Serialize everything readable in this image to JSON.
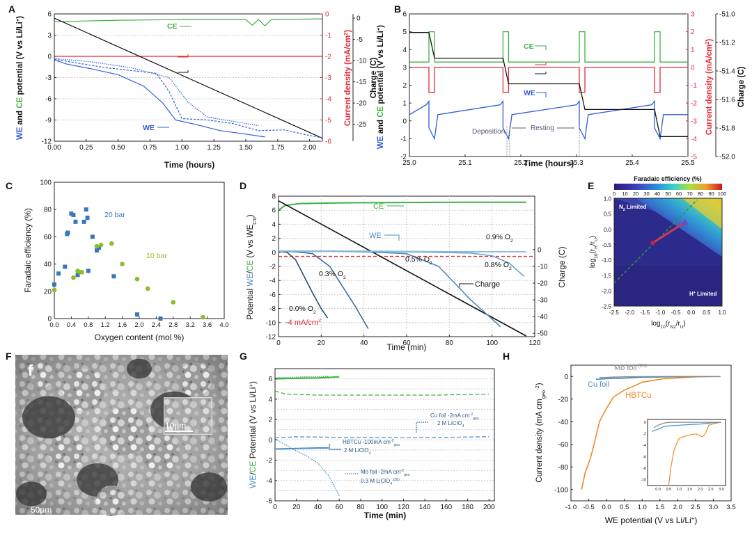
{
  "colors": {
    "we": "#2f5bd8",
    "ce": "#3cb043",
    "cur": "#e8283a",
    "charge": "#111111",
    "blue": "#3a77b8",
    "green": "#8cbc2a",
    "teal": "#4a8fc4",
    "orange": "#f08a24",
    "grey": "#888888",
    "red2": "#d6282d"
  },
  "chart_data": [
    {
      "id": "A",
      "type": "line",
      "panel_label": "A",
      "xlabel": "Time (hours)",
      "xlim": [
        0,
        2.1
      ],
      "xticks": [
        "0.00",
        "0.25",
        "0.50",
        "0.75",
        "1.00",
        "1.25",
        "1.50",
        "1.75",
        "2.00"
      ],
      "ylabel_left": {
        "we": "WE",
        "and": " and ",
        "ce": "CE",
        "rest": " potential (V vs Li/Li",
        "sup": "+",
        "close": ")"
      },
      "ylim_left": [
        -12,
        6
      ],
      "yticks_left": [
        "6",
        "3",
        "0",
        "-3",
        "-6",
        "-9",
        "-12"
      ],
      "ylabel_right1": {
        "text": "Current density (mA/cm",
        "sup": "2",
        "close": ")"
      },
      "ylim_right1": [
        -6,
        0
      ],
      "yticks_right1": [
        "0",
        "-1",
        "-2",
        "-3",
        "-4",
        "-5",
        "-6"
      ],
      "ylabel_right2": "Charge (C)",
      "ylim_right2": [
        -29,
        1
      ],
      "yticks_right2": [
        "0",
        "-5",
        "-10",
        "-15",
        "-20",
        "-25"
      ],
      "annotations": {
        "ce": "CE",
        "we": "WE"
      },
      "series": [
        {
          "name": "CE",
          "axis": "left",
          "x": [
            0,
            0.5,
            1.0,
            1.5,
            1.55,
            1.6,
            1.65,
            1.7,
            2.1
          ],
          "y": [
            4.9,
            5.1,
            5.2,
            5.2,
            4.4,
            5.2,
            4.3,
            5.2,
            5.3
          ]
        },
        {
          "name": "Current",
          "axis": "right1",
          "x": [
            0,
            2.1
          ],
          "y": [
            -2,
            -2
          ]
        },
        {
          "name": "Charge",
          "axis": "right2",
          "x": [
            0,
            2.1
          ],
          "y": [
            0,
            -28.3
          ]
        },
        {
          "name": "WE1",
          "axis": "left",
          "x": [
            0,
            0.1,
            0.3,
            0.5,
            0.7,
            0.85,
            0.95,
            1.1,
            1.3,
            1.5,
            1.65
          ],
          "y": [
            -0.5,
            -1.1,
            -1.8,
            -2.6,
            -4.2,
            -6.6,
            -9.0,
            -9.6,
            -10.5,
            -11.0,
            -11.4
          ]
        },
        {
          "name": "WE2",
          "axis": "left",
          "x": [
            0,
            0.2,
            0.4,
            0.6,
            0.8,
            0.9,
            1.0,
            1.2,
            1.4,
            1.6,
            1.8,
            2.0,
            2.1
          ],
          "y": [
            -0.4,
            -1.0,
            -1.6,
            -2.0,
            -2.4,
            -5.0,
            -8.8,
            -9.0,
            -9.5,
            -10.5,
            -10.4,
            -11.2,
            -11.5
          ]
        },
        {
          "name": "WE3",
          "axis": "left",
          "x": [
            0,
            0.3,
            0.6,
            0.9,
            1.05,
            1.2,
            1.4,
            1.6
          ],
          "y": [
            -0.3,
            -0.8,
            -1.6,
            -3.0,
            -6.5,
            -8.6,
            -9.2,
            -9.8
          ]
        }
      ]
    },
    {
      "id": "B",
      "type": "line",
      "panel_label": "B",
      "xlabel": "Time (hours)",
      "xlim": [
        25.0,
        25.5
      ],
      "xticks": [
        "25.0",
        "25.1",
        "25.2",
        "25.3",
        "25.4",
        "25.5"
      ],
      "ylabel_left": {
        "we": "WE",
        "and": " and ",
        "ce": "CE",
        "rest": " potential (V vs Li/Li",
        "sup": "+",
        "close": ")"
      },
      "ylim_left": [
        -2,
        6
      ],
      "yticks_left": [
        "6",
        "5",
        "4",
        "3",
        "2",
        "1",
        "0",
        "-1",
        "-2"
      ],
      "ylabel_right1": {
        "text": "Current density (mA/cm",
        "sup": "2",
        "close": ")"
      },
      "ylim_right1": [
        -5,
        3
      ],
      "yticks_right1": [
        "3",
        "2",
        "1",
        "0",
        "-1",
        "-2",
        "-3",
        "-4",
        "-5"
      ],
      "ylabel_right2": "Charge (C)",
      "ylim_right2": [
        -52.0,
        -51.0
      ],
      "yticks_right2": [
        "-51.0",
        "-51.2",
        "-51.4",
        "-51.6",
        "-51.8",
        "-52.0"
      ],
      "annotations": {
        "ce": "CE",
        "we": "WE",
        "deposition": "Deposition",
        "resting": "Resting"
      },
      "pulses": [
        [
          25.035,
          25.045
        ],
        [
          25.168,
          25.178
        ],
        [
          25.305,
          25.315
        ],
        [
          25.44,
          25.45
        ]
      ]
    },
    {
      "id": "C",
      "type": "scatter",
      "panel_label": "C",
      "xlabel": "Oxygen content (mol  %)",
      "xlim": [
        0,
        4.0
      ],
      "xticks": [
        "0.0",
        "0.4",
        "0.8",
        "1.2",
        "1.6",
        "2.0",
        "2.4",
        "2.8",
        "3.2",
        "3.6",
        "4.0"
      ],
      "ylabel": "Faradaic efficiency (%)",
      "ylim": [
        0,
        100
      ],
      "yticks": [
        "0",
        "20",
        "40",
        "60",
        "80",
        "100"
      ],
      "series": [
        {
          "name": "20 bar",
          "marker": "square",
          "x": [
            0,
            0.1,
            0.25,
            0.3,
            0.32,
            0.4,
            0.45,
            0.5,
            0.55,
            0.7,
            0.75,
            0.78,
            0.8,
            0.9,
            1.0,
            1.05,
            1.4,
            1.95,
            2.5
          ],
          "y": [
            25,
            33,
            38,
            62,
            63,
            77,
            76,
            71,
            32,
            71,
            80,
            74,
            35,
            60,
            50,
            52,
            31,
            3,
            0
          ]
        },
        {
          "name": "10 bar",
          "marker": "circle",
          "x": [
            0,
            0.45,
            0.55,
            0.6,
            0.65,
            1.0,
            1.1,
            1.35,
            1.6,
            1.95,
            2.2,
            2.8,
            3.5
          ],
          "y": [
            21,
            30,
            35,
            34,
            34,
            53,
            54,
            55,
            40,
            29,
            22,
            12,
            1
          ]
        }
      ]
    },
    {
      "id": "D",
      "type": "line",
      "panel_label": "D",
      "xlabel": "Time (min)",
      "xlim": [
        0,
        120
      ],
      "xticks": [
        "0",
        "20",
        "40",
        "60",
        "80",
        "100",
        "120"
      ],
      "ylabel": {
        "pre": "Potential ",
        "we": "WE",
        "slash": "/",
        "ce": "CE",
        "rest": " (V vs WE",
        "sub": "t=0",
        "close": ")"
      },
      "ylim": [
        -13,
        8
      ],
      "yticks": [
        "8",
        "6",
        "4",
        "2",
        "0",
        "-2",
        "-4",
        "-6",
        "-8",
        "-10",
        "-12"
      ],
      "ylabel_right": "Charge (C)",
      "ylim_right": [
        -52,
        32
      ],
      "yticks_right": [
        "0",
        "-10",
        "-20",
        "-30",
        "-40",
        "-50"
      ],
      "annotations": {
        "ce": "CE",
        "we": "WE",
        "charge": "Charge",
        "o2_00": "0.0% O",
        "o2_03": "0.3% O",
        "o2_05": "0.5% O",
        "o2_08": "0.8% O",
        "o2_09": "0.9% O",
        "o2_sub": "2",
        "current": "-4 mA/cm",
        "current_sup": "2"
      },
      "series": [
        {
          "name": "CE",
          "x": [
            0,
            3,
            10,
            30,
            60,
            90,
            116
          ],
          "y": [
            5.9,
            6.6,
            6.9,
            7.0,
            7.05,
            7.1,
            7.1
          ]
        },
        {
          "name": "Charge",
          "x": [
            0,
            116
          ],
          "y": [
            7.3,
            -12.9
          ]
        },
        {
          "name": "0.0% O2",
          "x": [
            0,
            4,
            8,
            12,
            16,
            20,
            23
          ],
          "y": [
            -0.2,
            -0.4,
            -1.5,
            -4.0,
            -6.5,
            -8.8,
            -10.2
          ]
        },
        {
          "name": "0.3% O2",
          "x": [
            0,
            8,
            16,
            24,
            30,
            36,
            42
          ],
          "y": [
            -0.2,
            -0.3,
            -0.6,
            -2.5,
            -5.5,
            -8.5,
            -11.8
          ]
        },
        {
          "name": "0.5% O2",
          "x": [
            0,
            20,
            40,
            60,
            75,
            90,
            104
          ],
          "y": [
            -0.2,
            -0.2,
            -0.3,
            -0.6,
            -2.5,
            -7.5,
            -11.5
          ]
        },
        {
          "name": "0.8% O2",
          "x": [
            0,
            30,
            60,
            90,
            100,
            108,
            115
          ],
          "y": [
            -0.2,
            -0.2,
            -0.3,
            -0.5,
            -0.9,
            -2.0,
            -4.0
          ]
        },
        {
          "name": "0.9% O2",
          "x": [
            0,
            40,
            80,
            116
          ],
          "y": [
            -0.2,
            -0.2,
            -0.3,
            -0.3
          ]
        }
      ]
    },
    {
      "id": "E",
      "type": "heatmap",
      "panel_label": "E",
      "title": "Faradaic efficiency (%)",
      "colorbar_ticks": [
        "0",
        "10",
        "20",
        "30",
        "40",
        "50",
        "60",
        "70",
        "80",
        "90",
        "100"
      ],
      "xlabel": {
        "pre": "log",
        "base": "10",
        "open": "(",
        "num": "r",
        "numsub": "N2",
        "den": "r",
        "densub": "U",
        "close": ")"
      },
      "ylabel": {
        "pre": "log",
        "base": "10",
        "open": "(",
        "num": "r",
        "numsub": "H",
        "den": "r",
        "densub": "U",
        "close": ")"
      },
      "xlim": [
        -2.5,
        1.0
      ],
      "ylim": [
        -2.5,
        1.0
      ],
      "xticks": [
        "-2.5",
        "-2.0",
        "-1.5",
        "-1.0",
        "-0.5",
        "0.0",
        "0.5",
        "1.0"
      ],
      "yticks": [
        "1.0",
        "0.5",
        "0.0",
        "-0.5",
        "-1.0",
        "-1.5",
        "-2.0",
        "-2.5"
      ],
      "annotations": {
        "n2": "N",
        "n2_sub": "2",
        "n2_rest": " Limited",
        "h": "H",
        "h_sup": "+",
        "h_rest": " Limited"
      },
      "points": {
        "start": [
          -1.25,
          -0.45
        ],
        "end": [
          -0.2,
          0.22
        ]
      }
    },
    {
      "id": "F",
      "type": "image",
      "panel_label": "F",
      "annotations": {
        "inner_label": "f",
        "scale_small": "10μm",
        "scale_large": "50μm"
      }
    },
    {
      "id": "G",
      "type": "line",
      "panel_label": "G",
      "xlabel": "Time (min)",
      "xlim": [
        0,
        205
      ],
      "xticks": [
        "0",
        "20",
        "40",
        "60",
        "80",
        "100",
        "120",
        "140",
        "160",
        "180",
        "200"
      ],
      "ylabel": {
        "we": "WE",
        "slash": "/",
        "ce": "CE",
        "rest": " Potential (V vs Li/Li",
        "sup": "+",
        "close": ")"
      },
      "ylim": [
        -6,
        7
      ],
      "yticks": [
        "6",
        "4",
        "2",
        "0",
        "-2",
        "-4",
        "-6"
      ],
      "annotations": {
        "cu1": "Cu foil -2mA cm",
        "cu1_sup": "-2",
        "cu1_sub": "geo",
        "cu2": "2 M LiClO",
        "cu2_sub": "4",
        "hb1": "HBTCu -100mA cm",
        "hb1_sup": "-2",
        "hb1_sub": "geo",
        "hb2": "2 M LiClO",
        "hb2_sub": "4",
        "mo1": "Mo foil -2mA cm",
        "mo1_sup": "-2",
        "mo1_sub": "geo",
        "mo2": "0.3 M LiClO",
        "mo2_sub": "4",
        "mo2_ref": " (28)"
      },
      "series": [
        {
          "name": "HBTCu CE",
          "x": [
            0,
            20,
            40,
            60
          ],
          "y": [
            6.0,
            6.05,
            6.1,
            6.2
          ]
        },
        {
          "name": "Cu CE",
          "x": [
            0,
            10,
            40,
            100,
            150,
            200
          ],
          "y": [
            4.8,
            4.5,
            4.4,
            4.4,
            4.4,
            4.5
          ]
        },
        {
          "name": "Mo CE",
          "x": [
            0,
            15,
            30,
            50
          ],
          "y": [
            6.1,
            6.15,
            6.2,
            6.25
          ]
        },
        {
          "name": "HBTCu WE",
          "x": [
            0,
            20,
            40,
            50
          ],
          "y": [
            -0.9,
            -0.85,
            -0.8,
            -0.8
          ]
        },
        {
          "name": "Cu WE",
          "x": [
            0,
            20,
            60,
            120,
            200
          ],
          "y": [
            0.2,
            0.3,
            0.25,
            0.2,
            0.3
          ]
        },
        {
          "name": "Mo WE",
          "x": [
            0,
            10,
            20,
            30,
            40,
            50,
            60
          ],
          "y": [
            0.1,
            -0.5,
            -1.1,
            -1.6,
            -2.3,
            -3.5,
            -5.5
          ]
        }
      ]
    },
    {
      "id": "H",
      "type": "line",
      "panel_label": "H",
      "xlabel": {
        "text": "WE potential (V vs Li/Li",
        "sup": "+",
        "close": ")"
      },
      "xlim": [
        -1.0,
        3.5
      ],
      "xticks": [
        "-1.0",
        "-0.5",
        "0.0",
        "0.5",
        "1.0",
        "1.5",
        "2.0",
        "2.5",
        "3.0",
        "3.5"
      ],
      "ylabel": {
        "text": "Current density (mA cm",
        "sub": "geo",
        "sup": "-2",
        "close": ")"
      },
      "ylim": [
        -110,
        10
      ],
      "yticks": [
        "0",
        "-20",
        "-40",
        "-60",
        "-80",
        "-100"
      ],
      "inset": {
        "xlim": [
          -0.5,
          3.2
        ],
        "ylim": [
          -11,
          0.5
        ],
        "xticks": [
          "0.0",
          "0.5",
          "1.0",
          "1.5",
          "2.0",
          "2.5",
          "3.0"
        ],
        "yticks": [
          "0",
          "-2",
          "-4",
          "-6",
          "-8",
          "-10"
        ]
      },
      "annotations": {
        "mo": "Mo foil",
        "mo_ref": " (28)",
        "cu": "Cu foil",
        "hbtcu": "HBTCu"
      },
      "series": [
        {
          "name": "HBTCu",
          "x": [
            -0.7,
            -0.6,
            -0.45,
            -0.35,
            -0.2,
            0.0,
            0.2,
            0.5,
            0.8,
            1.0,
            1.3,
            1.6,
            1.9,
            2.1,
            2.4,
            2.6,
            2.8
          ],
          "y": [
            -100,
            -85,
            -72,
            -60,
            -40,
            -28,
            -18,
            -12,
            -8,
            -5,
            -3.5,
            -2,
            -1.5,
            -1,
            -0.5,
            -0.2,
            0
          ]
        },
        {
          "name": "Cu foil",
          "x": [
            -0.3,
            0,
            0.5,
            1.0,
            1.5,
            2.0,
            2.5,
            3.0
          ],
          "y": [
            -2.5,
            -2,
            -1.5,
            -0.8,
            -0.5,
            -0.3,
            -0.1,
            0
          ]
        },
        {
          "name": "Mo foil",
          "x": [
            -0.2,
            0.2,
            0.6,
            1.0,
            1.5,
            2.0,
            2.5,
            3.2
          ],
          "y": [
            -1.2,
            -0.6,
            -0.3,
            -0.2,
            -0.1,
            -0.05,
            0,
            0
          ]
        }
      ]
    }
  ]
}
